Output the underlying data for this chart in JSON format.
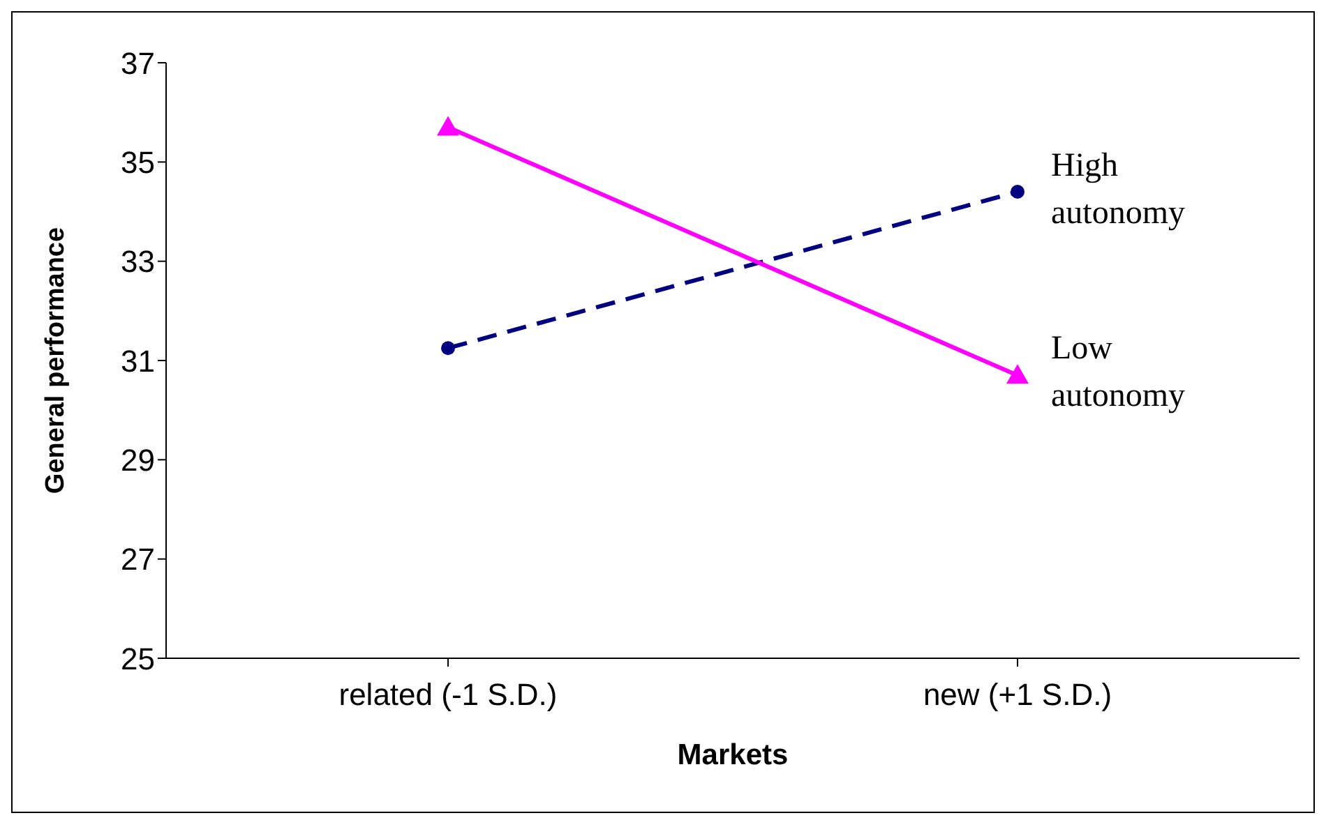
{
  "chart_data": {
    "type": "line",
    "xlabel": "Markets",
    "ylabel": "General performance",
    "categories": [
      "related (-1 S.D.)",
      "new (+1 S.D.)"
    ],
    "ylim": [
      25,
      37
    ],
    "yticks": [
      25,
      27,
      29,
      31,
      33,
      35,
      37
    ],
    "grid": false,
    "series": [
      {
        "name": "High autonomy",
        "color": "#000080",
        "values": [
          31.25,
          34.4
        ],
        "marker": "circle",
        "line_style": "dashed"
      },
      {
        "name": "Low autonomy",
        "color": "#ff00ff",
        "values": [
          35.7,
          30.7
        ],
        "marker": "triangle",
        "line_style": "solid"
      }
    ]
  }
}
